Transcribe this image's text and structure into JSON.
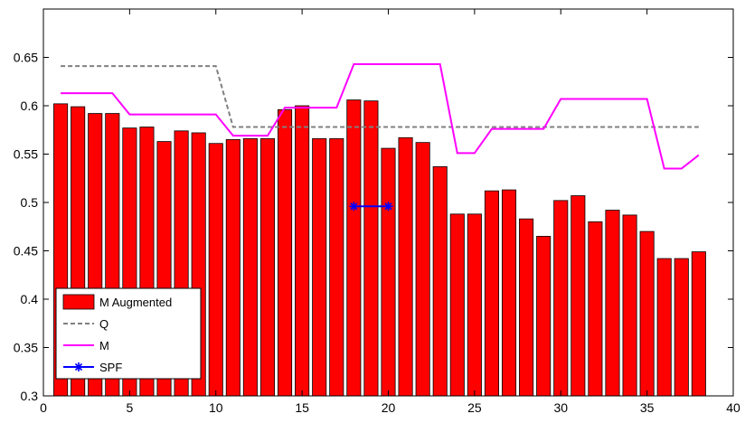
{
  "chart_data": {
    "type": "bar",
    "title": "",
    "xlabel": "",
    "ylabel": "",
    "xlim": [
      0,
      40
    ],
    "ylim": [
      0.3,
      0.7
    ],
    "xticks": [
      0,
      5,
      10,
      15,
      20,
      25,
      30,
      35,
      40
    ],
    "yticks": [
      0.3,
      0.35,
      0.4,
      0.45,
      0.5,
      0.55,
      0.6,
      0.65
    ],
    "ytick_labels": [
      "0.3",
      "0.35",
      "0.4",
      "0.45",
      "0.5",
      "0.55",
      "0.6",
      "0.65"
    ],
    "grid": false,
    "legend_position": "bottom-left",
    "bars": {
      "name": "M Augmented",
      "color": "#ff0000",
      "x": [
        1,
        2,
        3,
        4,
        5,
        6,
        7,
        8,
        9,
        10,
        11,
        12,
        13,
        14,
        15,
        16,
        17,
        18,
        19,
        20,
        21,
        22,
        23,
        24,
        25,
        26,
        27,
        28,
        29,
        30,
        31,
        32,
        33,
        34,
        35,
        36,
        37,
        38
      ],
      "values": [
        0.602,
        0.599,
        0.592,
        0.592,
        0.577,
        0.578,
        0.563,
        0.574,
        0.572,
        0.561,
        0.565,
        0.566,
        0.566,
        0.596,
        0.6,
        0.566,
        0.566,
        0.606,
        0.605,
        0.556,
        0.567,
        0.562,
        0.537,
        0.488,
        0.488,
        0.512,
        0.513,
        0.483,
        0.465,
        0.502,
        0.507,
        0.48,
        0.492,
        0.487,
        0.47,
        0.442,
        0.442,
        0.449
      ]
    },
    "series": [
      {
        "name": "Q",
        "style": "dashed",
        "color": "#808080",
        "x": [
          1,
          2,
          3,
          4,
          5,
          6,
          7,
          8,
          9,
          10,
          11,
          12,
          13,
          14,
          15,
          16,
          17,
          18,
          19,
          20,
          21,
          22,
          23,
          24,
          25,
          26,
          27,
          28,
          29,
          30,
          31,
          32,
          33,
          34,
          35,
          36,
          37,
          38
        ],
        "y": [
          0.641,
          0.641,
          0.641,
          0.641,
          0.641,
          0.641,
          0.641,
          0.641,
          0.641,
          0.641,
          0.578,
          0.578,
          0.578,
          0.578,
          0.578,
          0.578,
          0.578,
          0.578,
          0.578,
          0.578,
          0.578,
          0.578,
          0.578,
          0.578,
          0.578,
          0.578,
          0.578,
          0.578,
          0.578,
          0.578,
          0.578,
          0.578,
          0.578,
          0.578,
          0.578,
          0.578,
          0.578,
          0.578
        ]
      },
      {
        "name": "M",
        "style": "solid",
        "color": "#ff00ff",
        "x": [
          1,
          2,
          3,
          4,
          5,
          6,
          7,
          8,
          9,
          10,
          11,
          12,
          13,
          14,
          15,
          16,
          17,
          18,
          19,
          20,
          21,
          22,
          23,
          24,
          25,
          26,
          27,
          28,
          29,
          30,
          31,
          32,
          33,
          34,
          35,
          36,
          37,
          38
        ],
        "y": [
          0.613,
          0.613,
          0.613,
          0.613,
          0.591,
          0.591,
          0.591,
          0.591,
          0.591,
          0.591,
          0.569,
          0.569,
          0.569,
          0.598,
          0.598,
          0.598,
          0.598,
          0.643,
          0.643,
          0.643,
          0.643,
          0.643,
          0.643,
          0.551,
          0.551,
          0.576,
          0.576,
          0.576,
          0.576,
          0.607,
          0.607,
          0.607,
          0.607,
          0.607,
          0.607,
          0.535,
          0.535,
          0.549
        ]
      },
      {
        "name": "SPF",
        "style": "solid-star",
        "color": "#0000ff",
        "x": [
          18,
          20
        ],
        "y": [
          0.496,
          0.496
        ]
      }
    ]
  }
}
